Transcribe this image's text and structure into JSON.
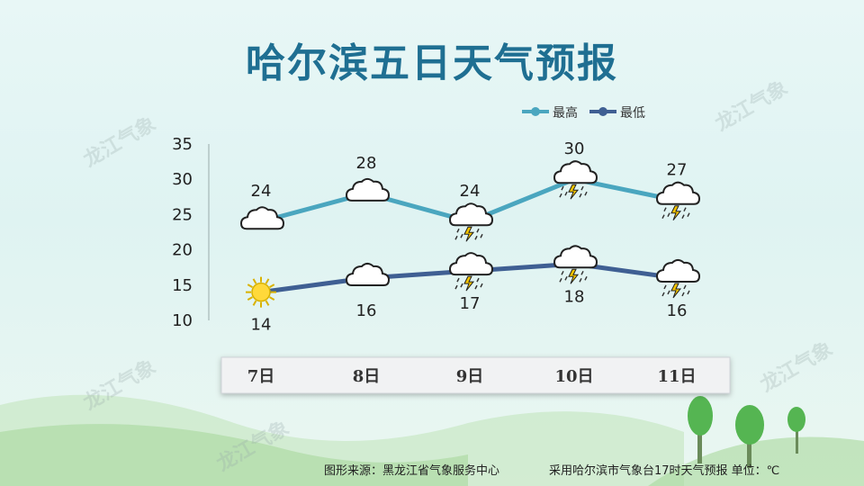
{
  "title": "哈尔滨五日天气预报",
  "source_label": "图形来源：黑龙江省气象服务中心",
  "basis_label": "采用哈尔滨市气象台17时天气预报 单位：℃",
  "watermark": "龙江气象",
  "colors": {
    "high": "#4aa6bf",
    "low": "#3f5f93",
    "title": "#1f6f92"
  },
  "chart_data": {
    "type": "line",
    "categories": [
      "7日",
      "8日",
      "9日",
      "10日",
      "11日"
    ],
    "ylim": [
      10,
      35
    ],
    "yticks": [
      10,
      15,
      20,
      25,
      30,
      35
    ],
    "legend_position": "top-right",
    "series": [
      {
        "name": "最高",
        "values": [
          24,
          28,
          24,
          30,
          27
        ],
        "icons": [
          "cloud-icon",
          "cloud-icon",
          "thunderstorm-icon",
          "thunderstorm-icon",
          "thunderstorm-icon"
        ]
      },
      {
        "name": "最低",
        "values": [
          14,
          16,
          17,
          18,
          16
        ],
        "icons": [
          "sun-icon",
          "cloud-icon",
          "thunderstorm-icon",
          "thunderstorm-icon",
          "thunderstorm-icon"
        ]
      }
    ]
  }
}
